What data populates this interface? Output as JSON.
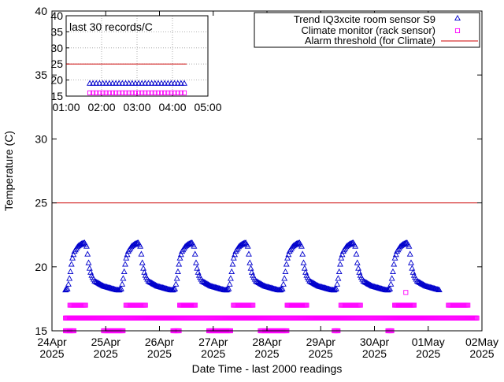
{
  "chart_data": {
    "type": "scatter",
    "title": "",
    "xlabel": "Date Time - last 2000 readings",
    "ylabel": "Temperature (C)",
    "x_ticks": [
      {
        "value": "2025-04-24",
        "line1": "24Apr",
        "line2": "2025"
      },
      {
        "value": "2025-04-25",
        "line1": "25Apr",
        "line2": "2025"
      },
      {
        "value": "2025-04-26",
        "line1": "26Apr",
        "line2": "2025"
      },
      {
        "value": "2025-04-27",
        "line1": "27Apr",
        "line2": "2025"
      },
      {
        "value": "2025-04-28",
        "line1": "28Apr",
        "line2": "2025"
      },
      {
        "value": "2025-04-29",
        "line1": "29Apr",
        "line2": "2025"
      },
      {
        "value": "2025-04-30",
        "line1": "30Apr",
        "line2": "2025"
      },
      {
        "value": "2025-05-01",
        "line1": "01May",
        "line2": "2025"
      },
      {
        "value": "2025-05-02",
        "line1": "02May",
        "line2": "2025"
      }
    ],
    "xlim": [
      "2025-04-24",
      "2025-05-02"
    ],
    "ylim": [
      15,
      40
    ],
    "y_ticks": [
      15,
      20,
      25,
      30,
      35,
      40
    ],
    "grid": false,
    "legend_position": "top-right",
    "colors": {
      "sensor": "#0000cc",
      "climate": "#ff00ff",
      "alarm": "#cc0000"
    },
    "series": [
      {
        "name": "Trend IQ3xcite room sensor S9",
        "marker": "triangle",
        "daily_profile": {
          "days": [
            "2025-04-24",
            "2025-04-25",
            "2025-04-26",
            "2025-04-27",
            "2025-04-28",
            "2025-04-29",
            "2025-04-30"
          ],
          "points": [
            {
              "hour": 6.0,
              "value": 18.2
            },
            {
              "hour": 7.0,
              "value": 18.3
            },
            {
              "hour": 8.0,
              "value": 19.3
            },
            {
              "hour": 9.0,
              "value": 20.6
            },
            {
              "hour": 10.0,
              "value": 21.2
            },
            {
              "hour": 11.5,
              "value": 21.6
            },
            {
              "hour": 13.0,
              "value": 21.8
            },
            {
              "hour": 14.5,
              "value": 21.9
            },
            {
              "hour": 15.5,
              "value": 21.6
            },
            {
              "hour": 16.5,
              "value": 20.1
            },
            {
              "hour": 17.5,
              "value": 19.4
            },
            {
              "hour": 19.0,
              "value": 18.9
            },
            {
              "hour": 21.0,
              "value": 18.7
            },
            {
              "hour": 23.0,
              "value": 18.5
            },
            {
              "hour": 25.0,
              "value": 18.4
            },
            {
              "hour": 27.0,
              "value": 18.3
            },
            {
              "hour": 29.0,
              "value": 18.2
            },
            {
              "hour": 30.0,
              "value": 18.2
            }
          ]
        },
        "end": "2025-05-01 05:00"
      },
      {
        "name": "Climate monitor (rack sensor)",
        "marker": "square",
        "bands": [
          {
            "value": 16,
            "start": "2025-04-24 06:00",
            "end": "2025-05-01 22:00"
          },
          {
            "value": 17,
            "segments": [
              [
                "2025-04-24 08:00",
                "2025-04-24 15:00"
              ],
              [
                "2025-04-25 09:00",
                "2025-04-25 18:00"
              ],
              [
                "2025-04-26 09:00",
                "2025-04-26 16:00"
              ],
              [
                "2025-04-27 09:00",
                "2025-04-27 18:00"
              ],
              [
                "2025-04-28 09:00",
                "2025-04-28 18:00"
              ],
              [
                "2025-04-29 09:00",
                "2025-04-29 18:00"
              ],
              [
                "2025-04-30 09:00",
                "2025-04-30 18:00"
              ],
              [
                "2025-05-01 09:00",
                "2025-05-01 18:00"
              ]
            ]
          },
          {
            "value": 15,
            "segments": [
              [
                "2025-04-24 06:00",
                "2025-04-24 10:00"
              ],
              [
                "2025-04-24 23:00",
                "2025-04-25 08:00"
              ],
              [
                "2025-04-26 06:00",
                "2025-04-26 09:00"
              ],
              [
                "2025-04-26 22:00",
                "2025-04-27 08:00"
              ],
              [
                "2025-04-27 21:00",
                "2025-04-28 09:00"
              ],
              [
                "2025-04-29 06:00",
                "2025-04-29 08:00"
              ],
              [
                "2025-04-30 06:00",
                "2025-04-30 08:00"
              ]
            ]
          }
        ],
        "outliers": [
          {
            "x": "2025-04-30 14:00",
            "value": 18
          }
        ]
      },
      {
        "name": "Alarm threshold (for Climate)",
        "type": "line",
        "value": 25,
        "start": "2025-04-24 00:00",
        "end": "2025-05-01 22:00"
      }
    ],
    "inset": {
      "title": "last 30 records/C",
      "xlim": [
        "01:00",
        "05:00"
      ],
      "x_ticks": [
        "01:00",
        "02:00",
        "03:00",
        "04:00",
        "05:00"
      ],
      "ylim": [
        15,
        40
      ],
      "y_ticks": [
        15,
        20,
        25,
        30,
        35,
        40
      ],
      "grid": true,
      "sensor_value": 19,
      "climate_value": 16,
      "alarm_value": 25,
      "x_range": [
        "01:40",
        "04:20"
      ],
      "points": 30
    }
  }
}
